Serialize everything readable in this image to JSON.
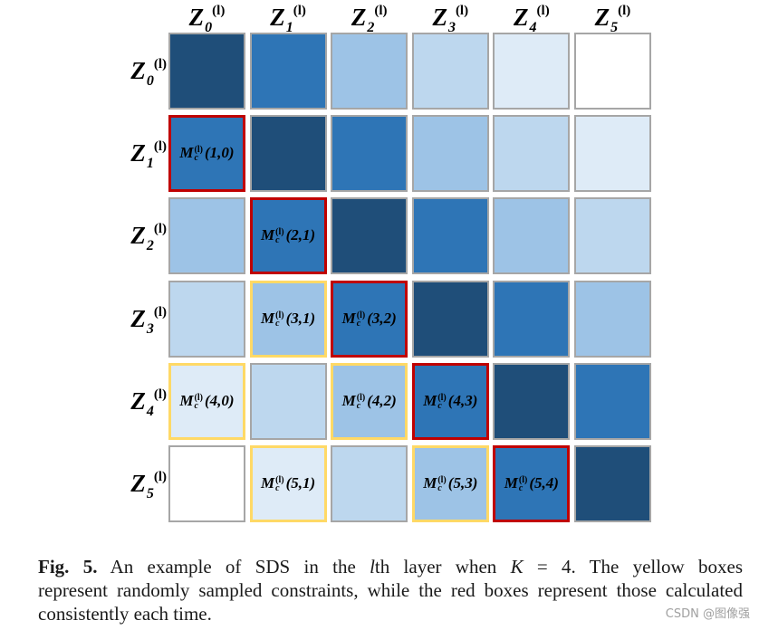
{
  "figure": {
    "column_labels": [
      {
        "base": "Z",
        "sub": "0",
        "sup": "(l)"
      },
      {
        "base": "Z",
        "sub": "1",
        "sup": "(l)"
      },
      {
        "base": "Z",
        "sub": "2",
        "sup": "(l)"
      },
      {
        "base": "Z",
        "sub": "3",
        "sup": "(l)"
      },
      {
        "base": "Z",
        "sub": "4",
        "sup": "(l)"
      },
      {
        "base": "Z",
        "sub": "5",
        "sup": "(l)"
      }
    ],
    "row_labels": [
      {
        "base": "Z",
        "sub": "0",
        "sup": "(l)"
      },
      {
        "base": "Z",
        "sub": "1",
        "sup": "(l)"
      },
      {
        "base": "Z",
        "sub": "2",
        "sup": "(l)"
      },
      {
        "base": "Z",
        "sub": "3",
        "sup": "(l)"
      },
      {
        "base": "Z",
        "sub": "4",
        "sup": "(l)"
      },
      {
        "base": "Z",
        "sub": "5",
        "sup": "(l)"
      }
    ],
    "border_colors": {
      "plain": "#a6a6a6",
      "red": "#c00000",
      "yellow": "#ffd966"
    },
    "cells": [
      [
        {
          "fill": "#1f4e79",
          "border": "plain"
        },
        {
          "fill": "#2e75b6",
          "border": "plain"
        },
        {
          "fill": "#9dc3e6",
          "border": "plain"
        },
        {
          "fill": "#bdd7ee",
          "border": "plain"
        },
        {
          "fill": "#deebf7",
          "border": "plain"
        },
        {
          "fill": "#ffffff",
          "border": "plain"
        }
      ],
      [
        {
          "fill": "#2e75b6",
          "border": "red",
          "label": {
            "base": "M",
            "sub": "c",
            "sup": "(l)",
            "args": "(1,0)"
          }
        },
        {
          "fill": "#1f4e79",
          "border": "plain"
        },
        {
          "fill": "#2e75b6",
          "border": "plain"
        },
        {
          "fill": "#9dc3e6",
          "border": "plain"
        },
        {
          "fill": "#bdd7ee",
          "border": "plain"
        },
        {
          "fill": "#deebf7",
          "border": "plain"
        }
      ],
      [
        {
          "fill": "#9dc3e6",
          "border": "plain"
        },
        {
          "fill": "#2e75b6",
          "border": "red",
          "label": {
            "base": "M",
            "sub": "c",
            "sup": "(l)",
            "args": "(2,1)"
          }
        },
        {
          "fill": "#1f4e79",
          "border": "plain"
        },
        {
          "fill": "#2e75b6",
          "border": "plain"
        },
        {
          "fill": "#9dc3e6",
          "border": "plain"
        },
        {
          "fill": "#bdd7ee",
          "border": "plain"
        }
      ],
      [
        {
          "fill": "#bdd7ee",
          "border": "plain"
        },
        {
          "fill": "#9dc3e6",
          "border": "yellow",
          "label": {
            "base": "M",
            "sub": "c",
            "sup": "(l)",
            "args": "(3,1)"
          }
        },
        {
          "fill": "#2e75b6",
          "border": "red",
          "label": {
            "base": "M",
            "sub": "c",
            "sup": "(l)",
            "args": "(3,2)"
          }
        },
        {
          "fill": "#1f4e79",
          "border": "plain"
        },
        {
          "fill": "#2e75b6",
          "border": "plain"
        },
        {
          "fill": "#9dc3e6",
          "border": "plain"
        }
      ],
      [
        {
          "fill": "#deebf7",
          "border": "yellow",
          "label": {
            "base": "M",
            "sub": "c",
            "sup": "(l)",
            "args": "(4,0)"
          }
        },
        {
          "fill": "#bdd7ee",
          "border": "plain"
        },
        {
          "fill": "#9dc3e6",
          "border": "yellow",
          "label": {
            "base": "M",
            "sub": "c",
            "sup": "(l)",
            "args": "(4,2)"
          }
        },
        {
          "fill": "#2e75b6",
          "border": "red",
          "label": {
            "base": "M",
            "sub": "c",
            "sup": "(l)",
            "args": "(4,3)"
          }
        },
        {
          "fill": "#1f4e79",
          "border": "plain"
        },
        {
          "fill": "#2e75b6",
          "border": "plain"
        }
      ],
      [
        {
          "fill": "#ffffff",
          "border": "plain"
        },
        {
          "fill": "#deebf7",
          "border": "yellow",
          "label": {
            "base": "M",
            "sub": "c",
            "sup": "(l)",
            "args": "(5,1)"
          }
        },
        {
          "fill": "#bdd7ee",
          "border": "plain"
        },
        {
          "fill": "#9dc3e6",
          "border": "yellow",
          "label": {
            "base": "M",
            "sub": "c",
            "sup": "(l)",
            "args": "(5,3)"
          }
        },
        {
          "fill": "#2e75b6",
          "border": "red",
          "label": {
            "base": "M",
            "sub": "c",
            "sup": "(l)",
            "args": "(5,4)"
          }
        },
        {
          "fill": "#1f4e79",
          "border": "plain"
        }
      ]
    ]
  },
  "caption": {
    "figure_label": "Fig. 5.",
    "line1_a": " An example of SDS in the ",
    "layer_symbol": "l",
    "line1_b": "th layer when ",
    "k_symbol": "K",
    "line1_c": " = 4. The yellow boxes",
    "line2": "represent randomly sampled constraints, while the red boxes represent those calculated",
    "line3": "consistently each time."
  },
  "watermark": {
    "text": "CSDN @图像强"
  }
}
